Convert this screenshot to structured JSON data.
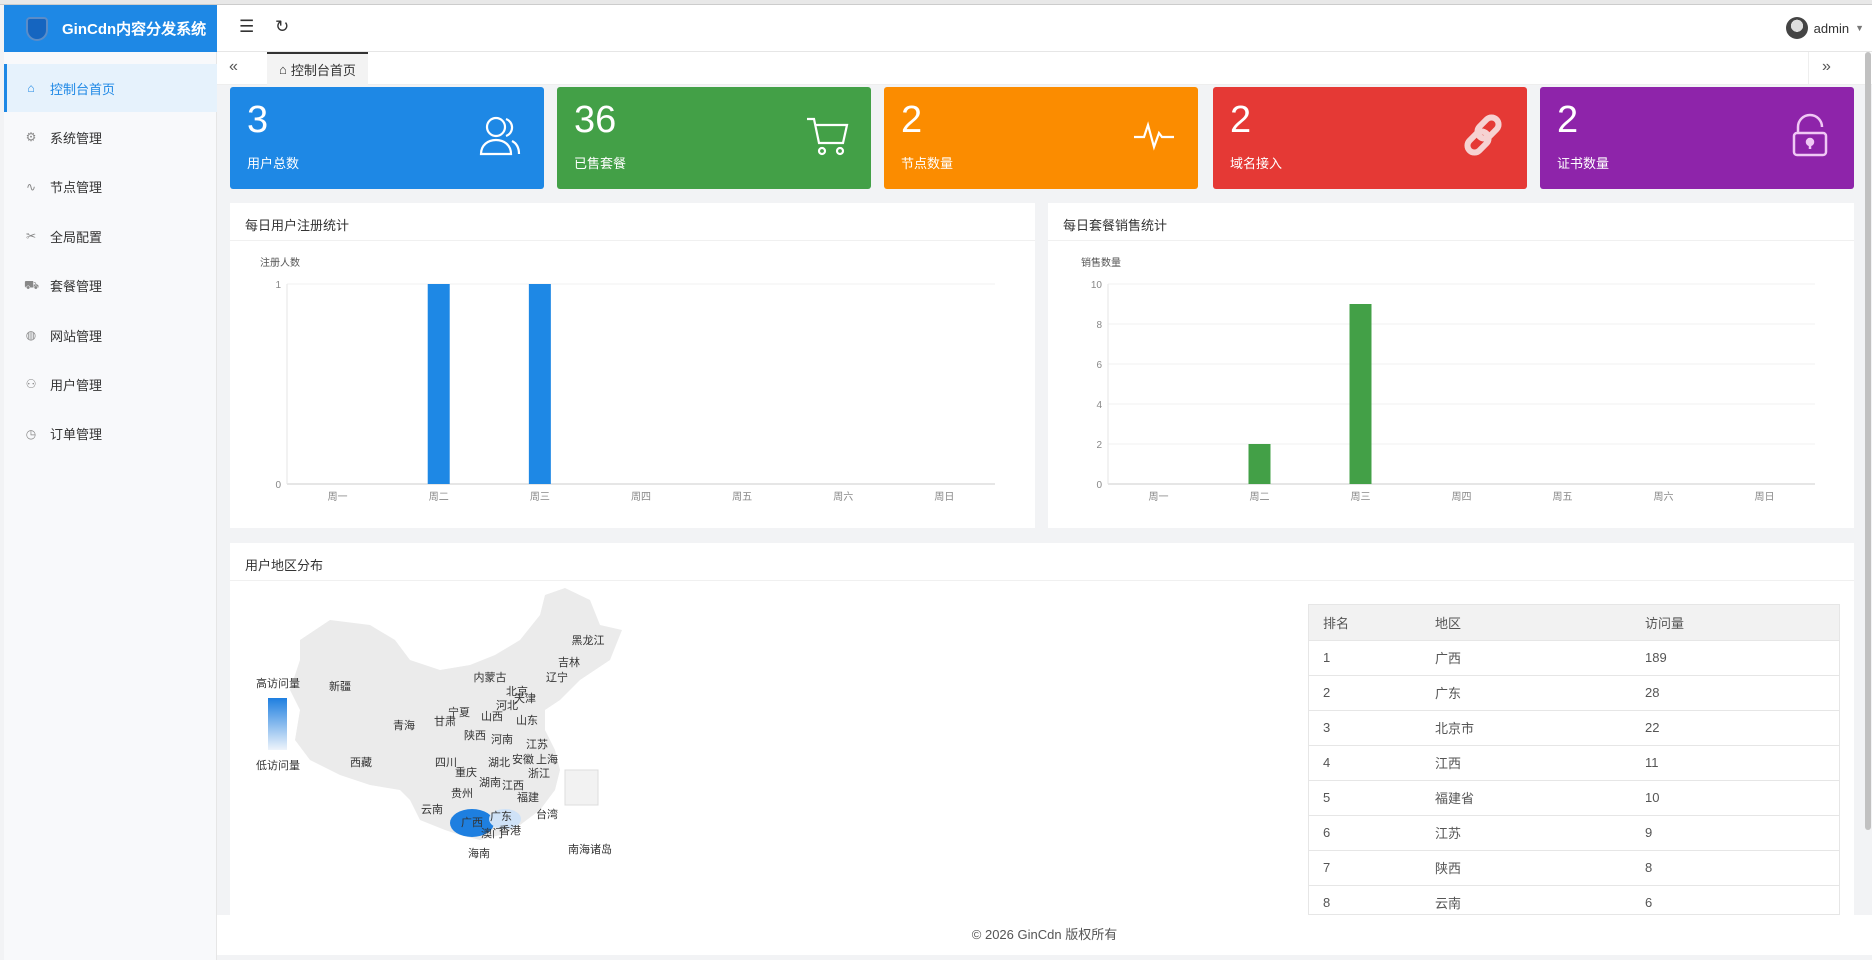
{
  "app": {
    "title": "GinCdn内容分发系统",
    "user": "admin"
  },
  "sidebar": {
    "items": [
      {
        "label": "控制台首页",
        "icon": "home-icon"
      },
      {
        "label": "系统管理",
        "icon": "gear-icon"
      },
      {
        "label": "节点管理",
        "icon": "pulse-icon"
      },
      {
        "label": "全局配置",
        "icon": "tools-icon"
      },
      {
        "label": "套餐管理",
        "icon": "cart-icon"
      },
      {
        "label": "网站管理",
        "icon": "globe-icon"
      },
      {
        "label": "用户管理",
        "icon": "user-icon"
      },
      {
        "label": "订单管理",
        "icon": "clock-icon"
      }
    ]
  },
  "tabs": {
    "active": "控制台首页"
  },
  "cards": [
    {
      "value": "3",
      "label": "用户总数",
      "color": "#1e88e5",
      "icon": "users-icon"
    },
    {
      "value": "36",
      "label": "已售套餐",
      "color": "#43a047",
      "icon": "cart-icon"
    },
    {
      "value": "2",
      "label": "节点数量",
      "color": "#fb8c00",
      "icon": "pulse-icon"
    },
    {
      "value": "2",
      "label": "域名接入",
      "color": "#e53935",
      "icon": "link-icon"
    },
    {
      "value": "2",
      "label": "证书数量",
      "color": "#8e24aa",
      "icon": "unlock-icon"
    }
  ],
  "chart_data": [
    {
      "type": "bar",
      "title": "每日用户注册统计",
      "ylabel": "注册人数",
      "categories": [
        "周一",
        "周二",
        "周三",
        "周四",
        "周五",
        "周六",
        "周日"
      ],
      "values": [
        0,
        1,
        1,
        0,
        0,
        0,
        0
      ],
      "ylim": [
        0,
        1
      ],
      "yticks": [
        0,
        1
      ],
      "color": "#1e88e5"
    },
    {
      "type": "bar",
      "title": "每日套餐销售统计",
      "ylabel": "销售数量",
      "categories": [
        "周一",
        "周二",
        "周三",
        "周四",
        "周五",
        "周六",
        "周日"
      ],
      "values": [
        0,
        2,
        9,
        0,
        0,
        0,
        0
      ],
      "ylim": [
        0,
        10
      ],
      "yticks": [
        0,
        2,
        4,
        6,
        8,
        10
      ],
      "color": "#43a047"
    }
  ],
  "map": {
    "title": "用户地区分布",
    "legend_high": "高访问量",
    "legend_low": "低访问量",
    "highlight": "广西",
    "labels": [
      "黑龙江",
      "吉林",
      "辽宁",
      "内蒙古",
      "新疆",
      "北京",
      "天津",
      "河北",
      "宁夏",
      "甘肃",
      "山西",
      "山东",
      "青海",
      "陕西",
      "河南",
      "江苏",
      "西藏",
      "四川",
      "湖北",
      "安徽",
      "上海",
      "重庆",
      "浙江",
      "湖南",
      "江西",
      "贵州",
      "福建",
      "云南",
      "广西",
      "广东",
      "台湾",
      "澳门",
      "香港",
      "海南",
      "南海诸岛"
    ]
  },
  "table": {
    "headers": [
      "排名",
      "地区",
      "访问量"
    ],
    "rows": [
      [
        "1",
        "广西",
        "189"
      ],
      [
        "2",
        "广东",
        "28"
      ],
      [
        "3",
        "北京市",
        "22"
      ],
      [
        "4",
        "江西",
        "11"
      ],
      [
        "5",
        "福建省",
        "10"
      ],
      [
        "6",
        "江苏",
        "9"
      ],
      [
        "7",
        "陕西",
        "8"
      ],
      [
        "8",
        "云南",
        "6"
      ]
    ]
  },
  "footer": "© 2026 GinCdn 版权所有"
}
